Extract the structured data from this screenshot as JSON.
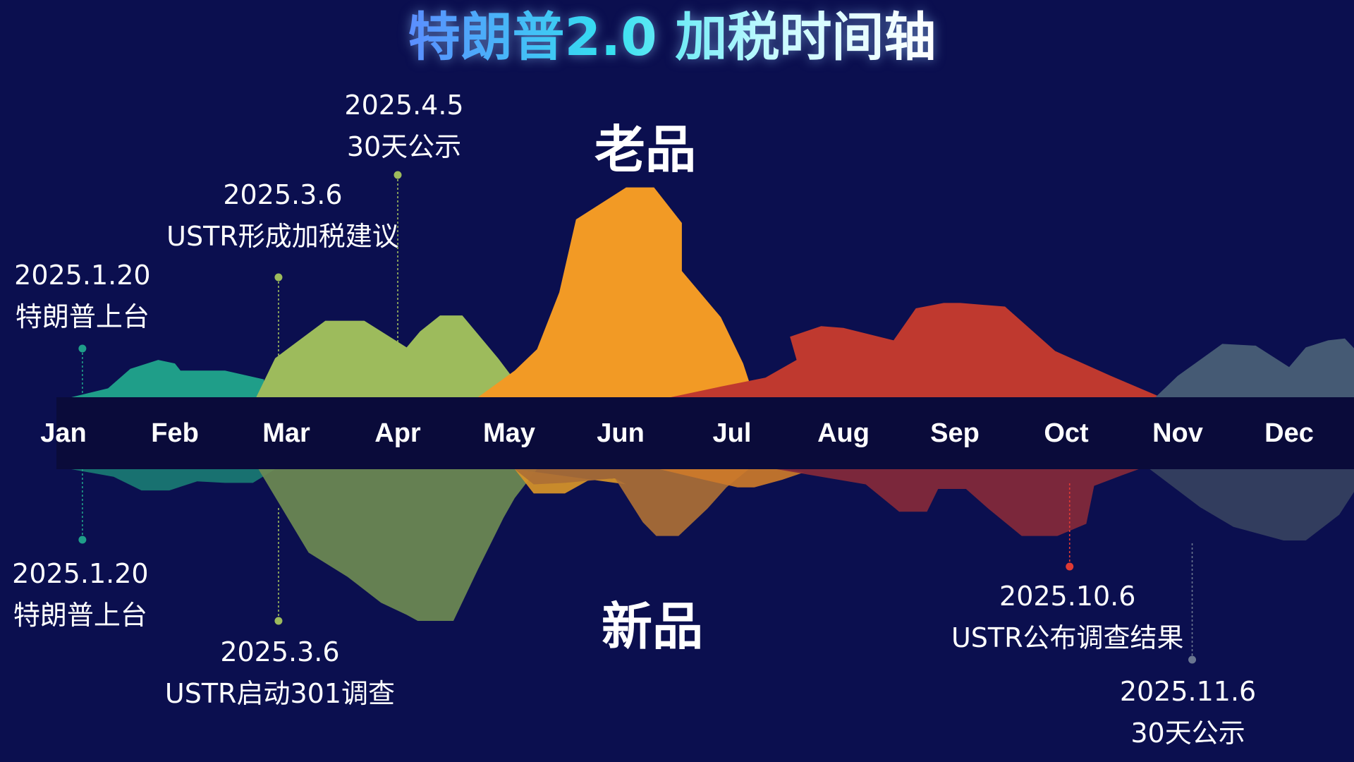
{
  "title": "特朗普2.0 加税时间轴",
  "colors": {
    "background": "#0b0f4f",
    "axis_band": "#0a0b3a",
    "title_gradient": [
      "#5b8dff",
      "#34e0f0",
      "#c9fbff"
    ]
  },
  "chart_data": {
    "type": "area",
    "months": [
      "Jan",
      "Feb",
      "Mar",
      "Apr",
      "May",
      "Jun",
      "Jul",
      "Aug",
      "Sep",
      "Oct",
      "Nov",
      "Dec"
    ],
    "top_series_label": "老品",
    "bottom_series_label": "新品",
    "top_series": [
      {
        "color": "#1f9e89",
        "points": [
          [
            0.07,
            0
          ],
          [
            0.4,
            0.05
          ],
          [
            0.6,
            0.16
          ],
          [
            0.85,
            0.21
          ],
          [
            1.0,
            0.19
          ],
          [
            1.05,
            0.15
          ],
          [
            1.45,
            0.15
          ],
          [
            1.8,
            0.1
          ],
          [
            1.8,
            0
          ]
        ]
      },
      {
        "color": "#9dbb5c",
        "points": [
          [
            1.73,
            0
          ],
          [
            1.9,
            0.22
          ],
          [
            2.35,
            0.43
          ],
          [
            2.7,
            0.43
          ],
          [
            3.08,
            0.28
          ],
          [
            3.2,
            0.37
          ],
          [
            3.38,
            0.46
          ],
          [
            3.58,
            0.46
          ],
          [
            3.9,
            0.22
          ],
          [
            4.02,
            0.12
          ],
          [
            4.15,
            0
          ]
        ]
      },
      {
        "color": "#f29a25",
        "points": [
          [
            3.72,
            0
          ],
          [
            4.05,
            0.15
          ],
          [
            4.25,
            0.27
          ],
          [
            4.45,
            0.59
          ],
          [
            4.6,
            1.0
          ],
          [
            5.05,
            1.18
          ],
          [
            5.3,
            1.18
          ],
          [
            5.55,
            0.98
          ],
          [
            5.55,
            0.71
          ],
          [
            5.9,
            0.45
          ],
          [
            6.1,
            0.19
          ],
          [
            6.2,
            0
          ],
          [
            5.55,
            0
          ]
        ]
      },
      {
        "color": "#bf392f",
        "points": [
          [
            5.45,
            0
          ],
          [
            5.9,
            0.06
          ],
          [
            6.3,
            0.11
          ],
          [
            6.58,
            0.21
          ],
          [
            6.52,
            0.34
          ],
          [
            6.8,
            0.4
          ],
          [
            7.0,
            0.39
          ],
          [
            7.45,
            0.32
          ],
          [
            7.65,
            0.5
          ],
          [
            7.9,
            0.53
          ],
          [
            8.05,
            0.53
          ],
          [
            8.45,
            0.51
          ],
          [
            8.9,
            0.26
          ],
          [
            9.4,
            0.12
          ],
          [
            9.85,
            0
          ]
        ]
      },
      {
        "color": "#455a74",
        "points": [
          [
            9.8,
            0
          ],
          [
            10.0,
            0.12
          ],
          [
            10.4,
            0.3
          ],
          [
            10.7,
            0.29
          ],
          [
            11.0,
            0.17
          ],
          [
            11.15,
            0.28
          ],
          [
            11.35,
            0.32
          ],
          [
            11.5,
            0.33
          ],
          [
            11.8,
            0.13
          ],
          [
            11.95,
            0
          ]
        ]
      }
    ],
    "bottom_series": [
      {
        "color": "#1a7a73",
        "points": [
          [
            0.07,
            0
          ],
          [
            0.45,
            0.05
          ],
          [
            0.7,
            0.14
          ],
          [
            0.95,
            0.14
          ],
          [
            1.2,
            0.08
          ],
          [
            1.45,
            0.09
          ],
          [
            1.7,
            0.09
          ],
          [
            1.9,
            0
          ],
          [
            1.8,
            0
          ]
        ]
      },
      {
        "color": "#6e8a52",
        "points": [
          [
            1.75,
            0
          ],
          [
            2.2,
            0.55
          ],
          [
            2.55,
            0.71
          ],
          [
            2.85,
            0.88
          ],
          [
            3.08,
            0.96
          ],
          [
            3.18,
            1.0
          ],
          [
            3.5,
            1.0
          ],
          [
            3.72,
            0.66
          ],
          [
            3.95,
            0.32
          ],
          [
            4.05,
            0.19
          ],
          [
            4.25,
            0
          ]
        ]
      },
      {
        "color": "#d99528",
        "points": [
          [
            4.05,
            0
          ],
          [
            4.22,
            0.16
          ],
          [
            4.5,
            0.16
          ],
          [
            4.72,
            0.07
          ],
          [
            4.95,
            0.06
          ],
          [
            5.05,
            0.1
          ]
        ]
      },
      {
        "color": "#ad6f35",
        "points": [
          [
            4.05,
            0
          ],
          [
            4.22,
            0.1
          ],
          [
            4.5,
            0.09
          ],
          [
            4.95,
            0.06
          ],
          [
            5.2,
            0.35
          ],
          [
            5.32,
            0.44
          ],
          [
            5.52,
            0.44
          ],
          [
            5.78,
            0.26
          ],
          [
            5.95,
            0.12
          ],
          [
            6.15,
            0
          ],
          [
            5.5,
            0
          ]
        ]
      },
      {
        "color": "#cc7a2a",
        "points": [
          [
            5.35,
            0
          ],
          [
            5.75,
            0.07
          ],
          [
            6.05,
            0.12
          ],
          [
            6.2,
            0.12
          ],
          [
            6.45,
            0.07
          ],
          [
            6.65,
            0.02
          ],
          [
            6.45,
            0
          ]
        ]
      },
      {
        "color": "#86293a",
        "points": [
          [
            6.4,
            0
          ],
          [
            7.2,
            0.1
          ],
          [
            7.5,
            0.28
          ],
          [
            7.75,
            0.28
          ],
          [
            7.85,
            0.13
          ],
          [
            8.1,
            0.13
          ],
          [
            8.3,
            0.26
          ],
          [
            8.6,
            0.44
          ],
          [
            8.92,
            0.44
          ],
          [
            9.18,
            0.36
          ],
          [
            9.25,
            0.11
          ],
          [
            9.5,
            0.04
          ],
          [
            9.65,
            0
          ]
        ]
      },
      {
        "color": "#36415f",
        "points": [
          [
            9.75,
            0
          ],
          [
            10.2,
            0.25
          ],
          [
            10.5,
            0.38
          ],
          [
            10.95,
            0.47
          ],
          [
            11.15,
            0.47
          ],
          [
            11.45,
            0.3
          ],
          [
            11.6,
            0.13
          ],
          [
            11.85,
            0
          ]
        ]
      }
    ],
    "top_annotations": [
      {
        "date": "2025.1.20",
        "text": "特朗普上台",
        "month_pos": 0.17,
        "color": "#1f9e89"
      },
      {
        "date": "2025.3.6",
        "text": "USTR形成加税建议",
        "month_pos": 1.93,
        "color": "#9dbb5c"
      },
      {
        "date": "2025.4.5",
        "text": "30天公示",
        "month_pos": 3.0,
        "color": "#9dbb5c"
      }
    ],
    "bottom_annotations": [
      {
        "date": "2025.1.20",
        "text": "特朗普上台",
        "month_pos": 0.17,
        "color": "#1f9e89"
      },
      {
        "date": "2025.3.6",
        "text": "USTR启动301调查",
        "month_pos": 1.93,
        "color": "#9dbb5c"
      },
      {
        "date": "2025.10.6",
        "text": "USTR公布调查结果",
        "month_pos": 9.03,
        "color": "#e03a34"
      },
      {
        "date": "2025.11.6",
        "text": "30天公示",
        "month_pos": 10.13,
        "color": "#6a7690"
      }
    ]
  }
}
